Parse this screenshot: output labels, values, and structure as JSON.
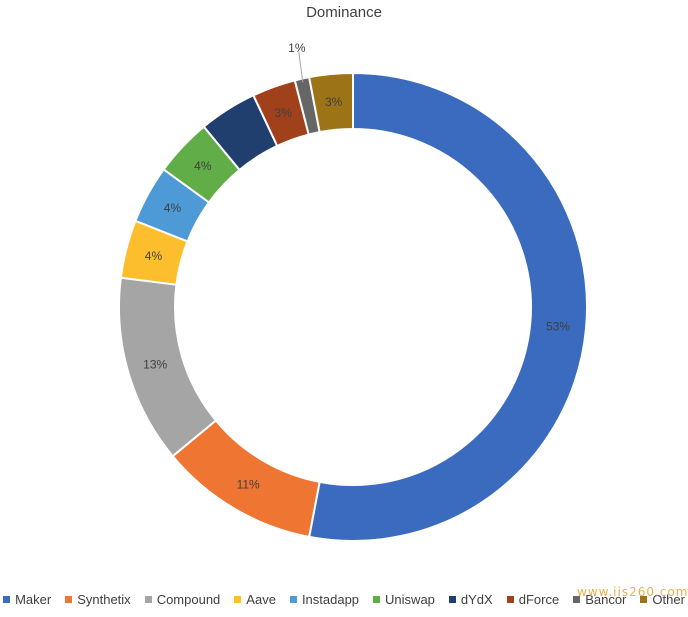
{
  "chart_data": {
    "type": "pie",
    "variant": "donut",
    "title": "Dominance",
    "legend_position": "bottom",
    "slices": [
      {
        "name": "Maker",
        "value": 53,
        "label": "53%",
        "color": "#3a6bbf"
      },
      {
        "name": "Synthetix",
        "value": 11,
        "label": "11%",
        "color": "#ef7533"
      },
      {
        "name": "Compound",
        "value": 13,
        "label": "13%",
        "color": "#a5a5a5"
      },
      {
        "name": "Aave",
        "value": 4,
        "label": "4%",
        "color": "#fcbe2c"
      },
      {
        "name": "Instadapp",
        "value": 4,
        "label": "4%",
        "color": "#4d9ad6"
      },
      {
        "name": "Uniswap",
        "value": 4,
        "label": "4%",
        "color": "#61ad47"
      },
      {
        "name": "dYdX",
        "value": 4,
        "label": "",
        "color": "#213f6e"
      },
      {
        "name": "dForce",
        "value": 3,
        "label": "3%",
        "color": "#a0411b"
      },
      {
        "name": "Bancor",
        "value": 1,
        "label": "1%",
        "color": "#666666"
      },
      {
        "name": "Other",
        "value": 3,
        "label": "3%",
        "color": "#9d7317"
      }
    ]
  },
  "watermark": "www.iis260.com"
}
